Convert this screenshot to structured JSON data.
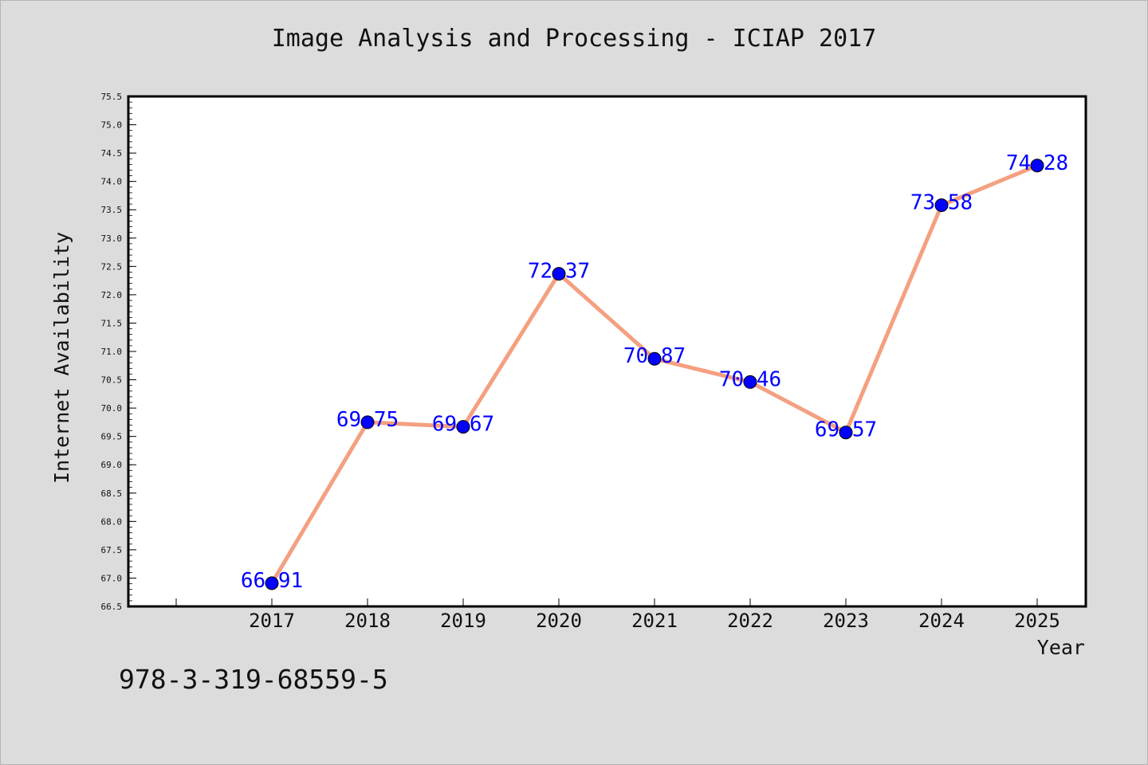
{
  "chart_data": {
    "type": "line",
    "title": "Image Analysis and Processing - ICIAP 2017",
    "xlabel": "Year",
    "ylabel": "Internet Availability",
    "categories": [
      "2017",
      "2018",
      "2019",
      "2020",
      "2021",
      "2022",
      "2023",
      "2024",
      "2025"
    ],
    "series": [
      {
        "values": [
          66.91,
          69.75,
          69.67,
          72.37,
          70.87,
          70.46,
          69.57,
          73.58,
          74.28
        ],
        "labels": [
          "66.91",
          "69.75",
          "69.67",
          "72.37",
          "70.87",
          "70.46",
          "69.57",
          "73.58",
          "74.28"
        ],
        "line_color": "#f4a080",
        "marker_color": "#0000ff",
        "label_color": "#0000ff"
      }
    ],
    "ylim": [
      66.5,
      75.5
    ],
    "yticks": [
      "66.5",
      "67.0",
      "67.5",
      "68.0",
      "68.5",
      "69.0",
      "69.5",
      "70.0",
      "70.5",
      "71.0",
      "71.5",
      "72.0",
      "72.5",
      "73.0",
      "73.5",
      "74.0",
      "74.5",
      "75.0",
      "75.5"
    ],
    "grid": false,
    "legend": "none"
  },
  "caption": "978-3-319-68559-5",
  "colors": {
    "background": "#dcdcdc",
    "plot_background": "#ffffff",
    "axis": "#000000"
  }
}
